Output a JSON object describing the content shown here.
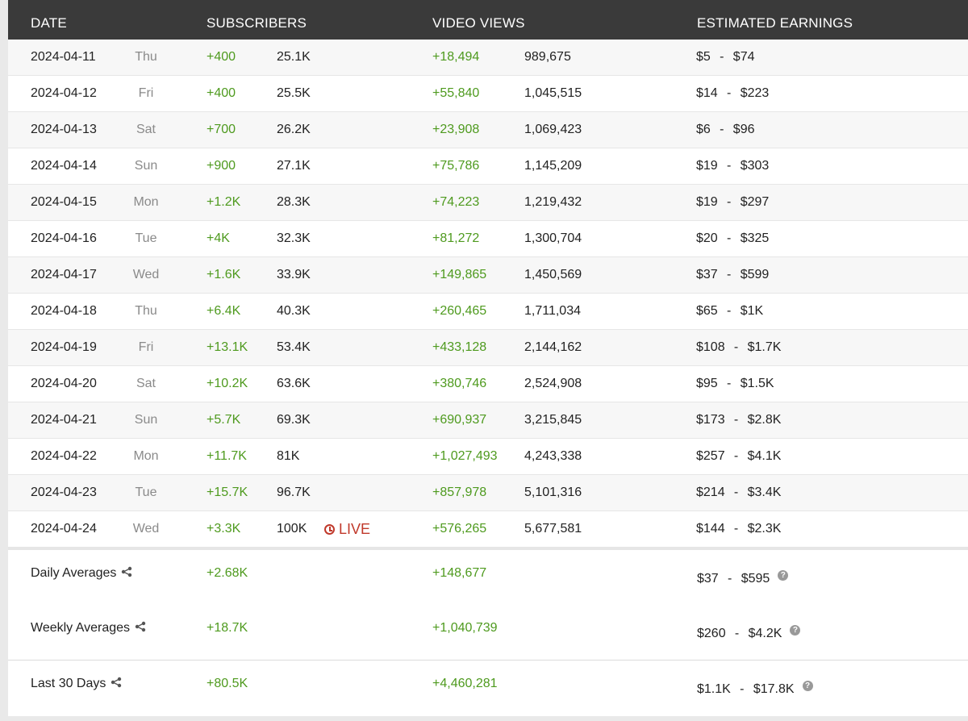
{
  "headers": {
    "date": "DATE",
    "subscribers": "SUBSCRIBERS",
    "video_views": "VIDEO VIEWS",
    "earnings": "ESTIMATED EARNINGS"
  },
  "rows": [
    {
      "date": "2024-04-11",
      "day": "Thu",
      "sub_delta": "+400",
      "sub_total": "25.1K",
      "views_delta": "+18,494",
      "views_total": "989,675",
      "earn_low": "$5",
      "earn_high": "$74"
    },
    {
      "date": "2024-04-12",
      "day": "Fri",
      "sub_delta": "+400",
      "sub_total": "25.5K",
      "views_delta": "+55,840",
      "views_total": "1,045,515",
      "earn_low": "$14",
      "earn_high": "$223"
    },
    {
      "date": "2024-04-13",
      "day": "Sat",
      "sub_delta": "+700",
      "sub_total": "26.2K",
      "views_delta": "+23,908",
      "views_total": "1,069,423",
      "earn_low": "$6",
      "earn_high": "$96"
    },
    {
      "date": "2024-04-14",
      "day": "Sun",
      "sub_delta": "+900",
      "sub_total": "27.1K",
      "views_delta": "+75,786",
      "views_total": "1,145,209",
      "earn_low": "$19",
      "earn_high": "$303"
    },
    {
      "date": "2024-04-15",
      "day": "Mon",
      "sub_delta": "+1.2K",
      "sub_total": "28.3K",
      "views_delta": "+74,223",
      "views_total": "1,219,432",
      "earn_low": "$19",
      "earn_high": "$297"
    },
    {
      "date": "2024-04-16",
      "day": "Tue",
      "sub_delta": "+4K",
      "sub_total": "32.3K",
      "views_delta": "+81,272",
      "views_total": "1,300,704",
      "earn_low": "$20",
      "earn_high": "$325"
    },
    {
      "date": "2024-04-17",
      "day": "Wed",
      "sub_delta": "+1.6K",
      "sub_total": "33.9K",
      "views_delta": "+149,865",
      "views_total": "1,450,569",
      "earn_low": "$37",
      "earn_high": "$599"
    },
    {
      "date": "2024-04-18",
      "day": "Thu",
      "sub_delta": "+6.4K",
      "sub_total": "40.3K",
      "views_delta": "+260,465",
      "views_total": "1,711,034",
      "earn_low": "$65",
      "earn_high": "$1K"
    },
    {
      "date": "2024-04-19",
      "day": "Fri",
      "sub_delta": "+13.1K",
      "sub_total": "53.4K",
      "views_delta": "+433,128",
      "views_total": "2,144,162",
      "earn_low": "$108",
      "earn_high": "$1.7K"
    },
    {
      "date": "2024-04-20",
      "day": "Sat",
      "sub_delta": "+10.2K",
      "sub_total": "63.6K",
      "views_delta": "+380,746",
      "views_total": "2,524,908",
      "earn_low": "$95",
      "earn_high": "$1.5K"
    },
    {
      "date": "2024-04-21",
      "day": "Sun",
      "sub_delta": "+5.7K",
      "sub_total": "69.3K",
      "views_delta": "+690,937",
      "views_total": "3,215,845",
      "earn_low": "$173",
      "earn_high": "$2.8K"
    },
    {
      "date": "2024-04-22",
      "day": "Mon",
      "sub_delta": "+11.7K",
      "sub_total": "81K",
      "views_delta": "+1,027,493",
      "views_total": "4,243,338",
      "earn_low": "$257",
      "earn_high": "$4.1K"
    },
    {
      "date": "2024-04-23",
      "day": "Tue",
      "sub_delta": "+15.7K",
      "sub_total": "96.7K",
      "views_delta": "+857,978",
      "views_total": "5,101,316",
      "earn_low": "$214",
      "earn_high": "$3.4K"
    },
    {
      "date": "2024-04-24",
      "day": "Wed",
      "sub_delta": "+3.3K",
      "sub_total": "100K",
      "views_delta": "+576,265",
      "views_total": "5,677,581",
      "earn_low": "$144",
      "earn_high": "$2.3K",
      "live": "LIVE"
    }
  ],
  "averages": [
    {
      "label": "Daily Averages",
      "subs": "+2.68K",
      "views": "+148,677",
      "earn_low": "$37",
      "earn_high": "$595"
    },
    {
      "label": "Weekly Averages",
      "subs": "+18.7K",
      "views": "+1,040,739",
      "earn_low": "$260",
      "earn_high": "$4.2K"
    },
    {
      "label": "Last 30 Days",
      "subs": "+80.5K",
      "views": "+4,460,281",
      "earn_low": "$1.1K",
      "earn_high": "$17.8K"
    }
  ],
  "separator": "-",
  "help_glyph": "?",
  "icons": {
    "share": "share-icon",
    "help": "help-icon",
    "clock": "clock-icon"
  },
  "colors": {
    "header_bg": "#3a3a3a",
    "positive": "#4e9a1e",
    "live": "#c0392b"
  }
}
